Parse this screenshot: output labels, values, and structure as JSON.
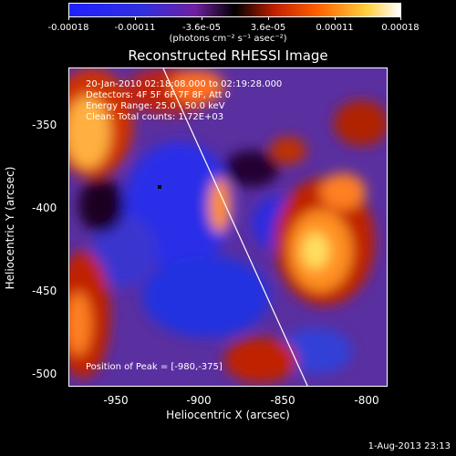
{
  "colorbar": {
    "ticks": [
      "-0.00018",
      "-0.00011",
      "-3.6e-05",
      "3.6e-05",
      "0.00011",
      "0.00018"
    ],
    "units": "(photons cm⁻² s⁻¹ asec⁻²)"
  },
  "title": "Reconstructed RHESSI Image",
  "info": {
    "time": "20-Jan-2010 02:18:08.000 to 02:19:28.000",
    "detectors": "Detectors: 4F 5F 6F 7F 8F, Att 0",
    "energy": "Energy Range: 25.0 - 50.0 keV",
    "counts": "Clean: Total counts: 1.72E+03",
    "peak": "Position of Peak = [-980,-375]"
  },
  "axes": {
    "xlabel": "Heliocentric X (arcsec)",
    "ylabel": "Heliocentric Y (arcsec)",
    "xticks": [
      "-950",
      "-900",
      "-850",
      "-800"
    ],
    "yticks": [
      "-350",
      "-400",
      "-450",
      "-500"
    ]
  },
  "timestamp": "1-Aug-2013 23:13",
  "colors": {
    "background": "#000000",
    "limb": "#ffffff"
  }
}
